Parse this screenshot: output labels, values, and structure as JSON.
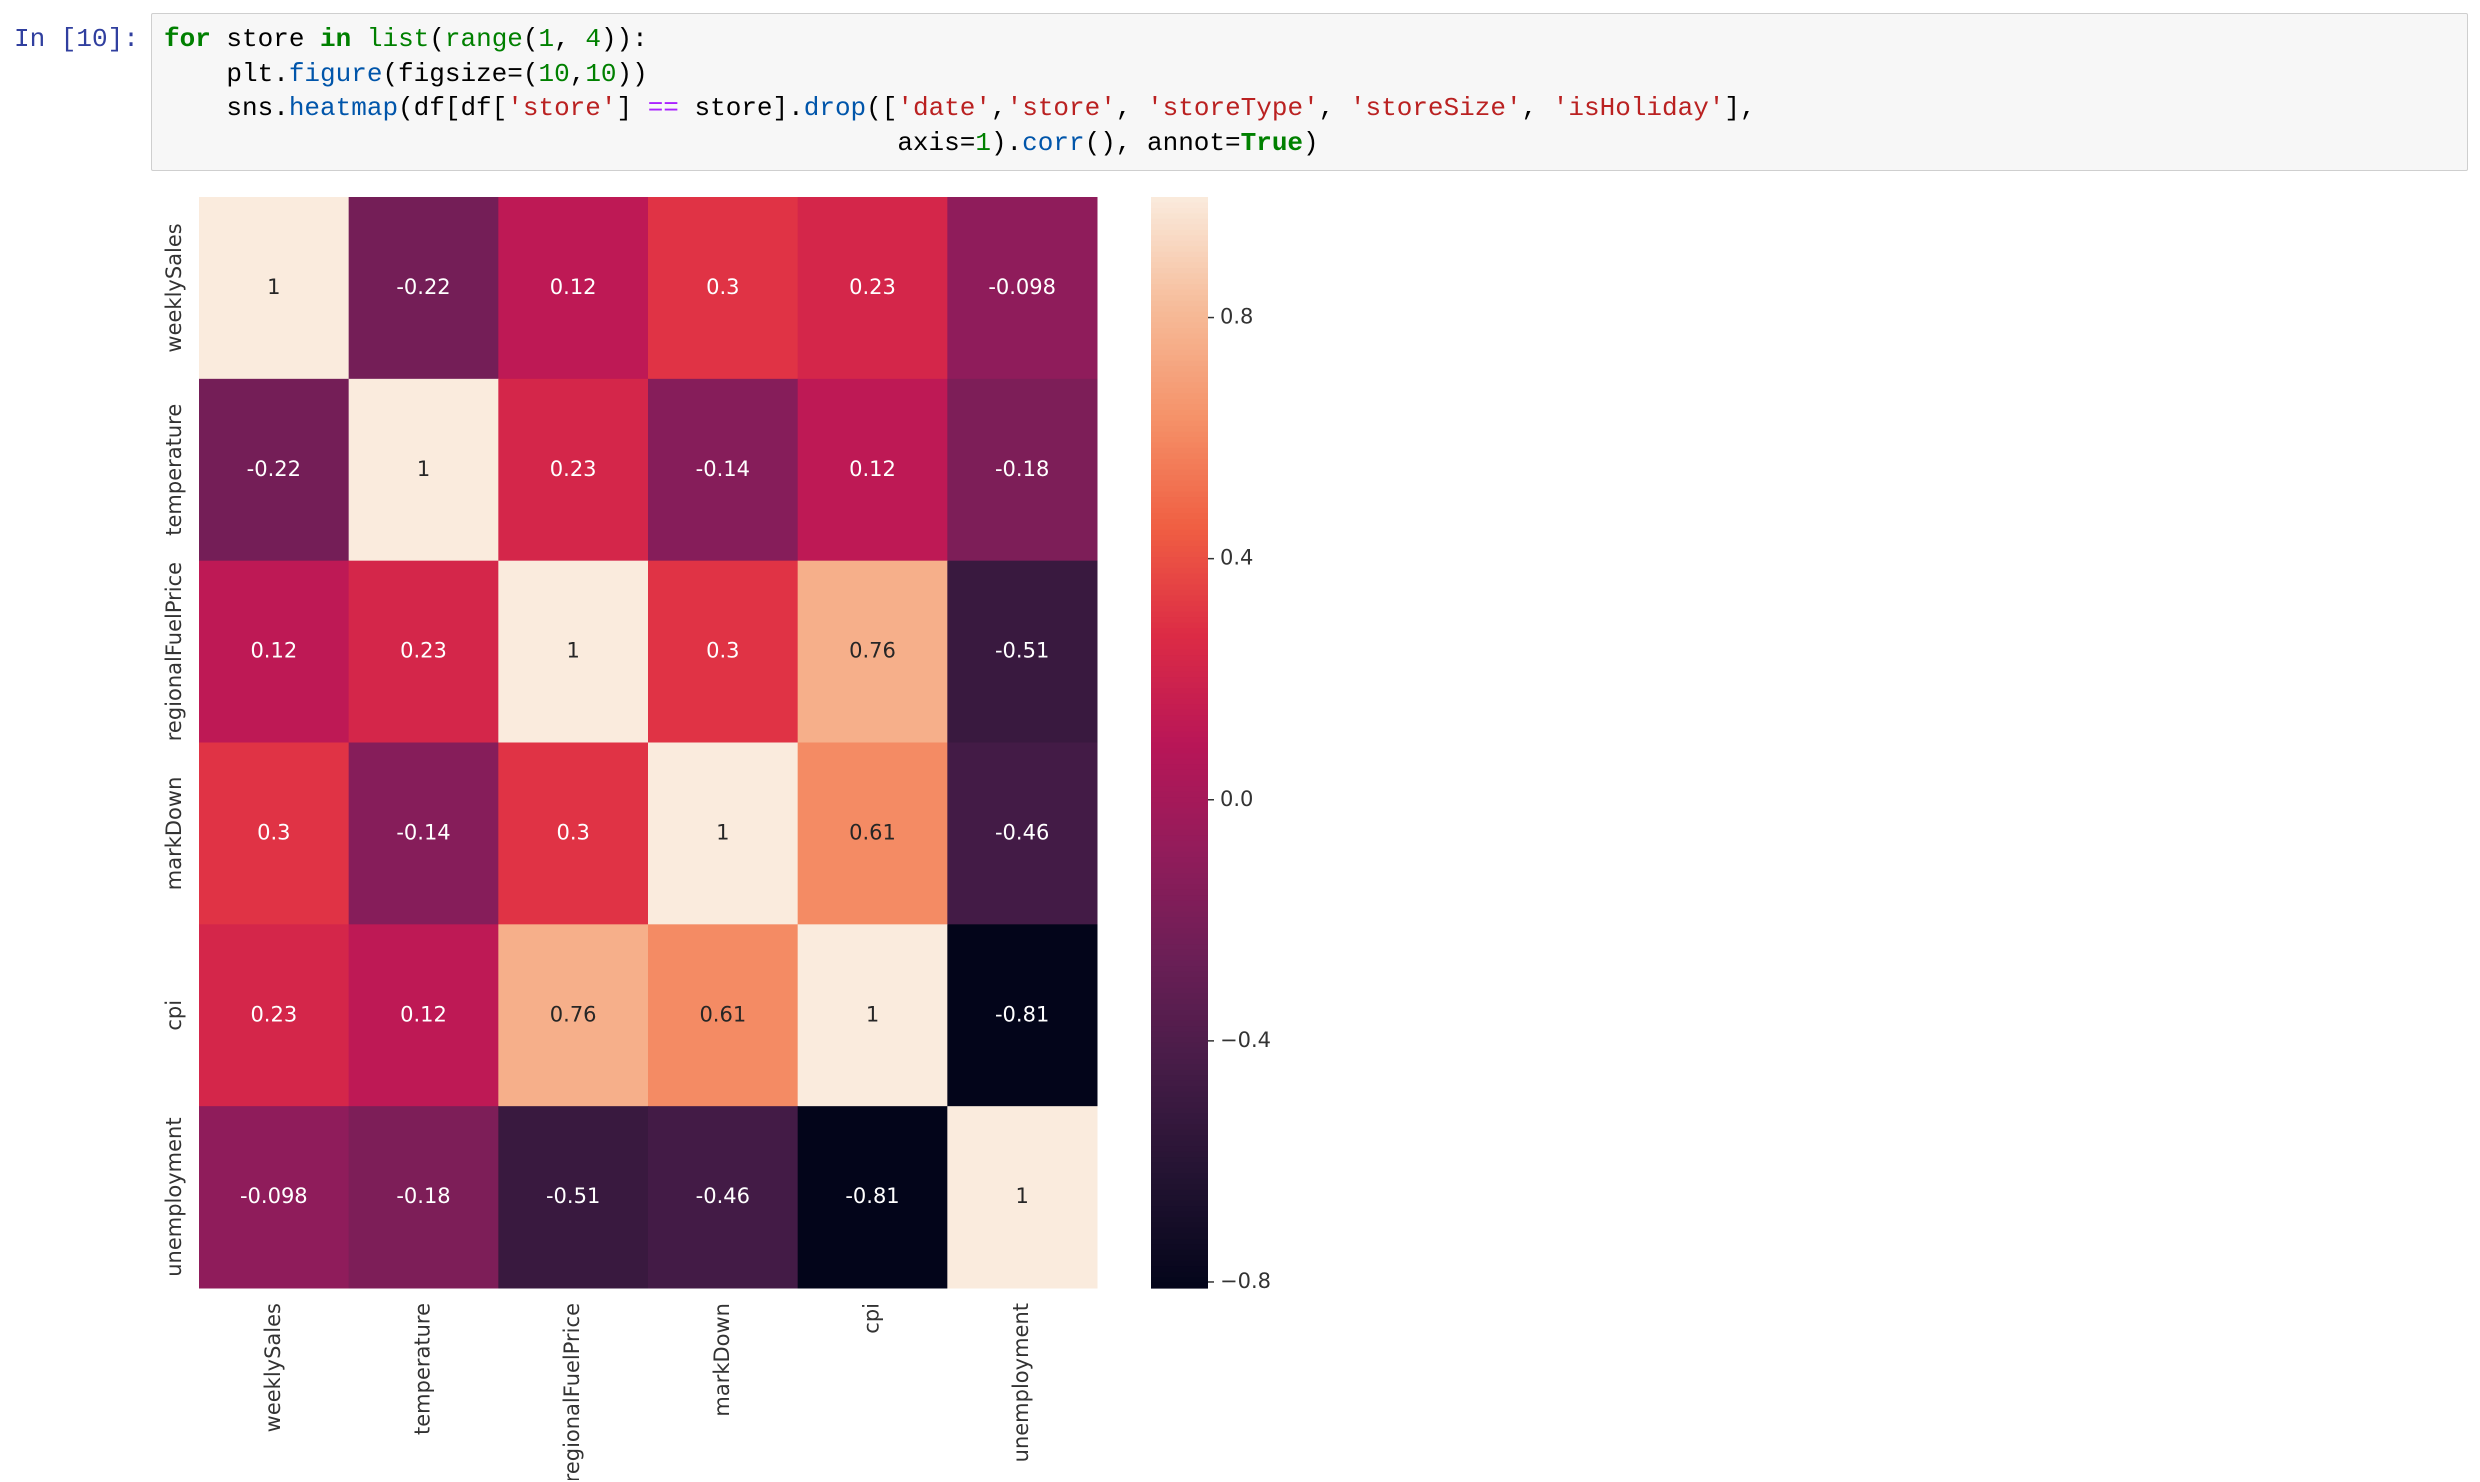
{
  "cell": {
    "prompt": "In [10]:",
    "code": [
      [
        {
          "t": "for",
          "c": "#008000",
          "b": true
        },
        {
          "t": " store ",
          "c": "#000000"
        },
        {
          "t": "in",
          "c": "#008000",
          "b": true
        },
        {
          "t": " ",
          "c": "#000000"
        },
        {
          "t": "list",
          "c": "#008000"
        },
        {
          "t": "(",
          "c": "#000000"
        },
        {
          "t": "range",
          "c": "#008000"
        },
        {
          "t": "(",
          "c": "#000000"
        },
        {
          "t": "1",
          "c": "#008000"
        },
        {
          "t": ", ",
          "c": "#000000"
        },
        {
          "t": "4",
          "c": "#008000"
        },
        {
          "t": ")):",
          "c": "#000000"
        }
      ],
      [
        {
          "t": "    plt.",
          "c": "#000000"
        },
        {
          "t": "figure",
          "c": "#0055aa"
        },
        {
          "t": "(figsize=(",
          "c": "#000000"
        },
        {
          "t": "10",
          "c": "#008000"
        },
        {
          "t": ",",
          "c": "#000000"
        },
        {
          "t": "10",
          "c": "#008000"
        },
        {
          "t": "))",
          "c": "#000000"
        }
      ],
      [
        {
          "t": "    sns.",
          "c": "#000000"
        },
        {
          "t": "heatmap",
          "c": "#0055aa"
        },
        {
          "t": "(df[df[",
          "c": "#000000"
        },
        {
          "t": "'store'",
          "c": "#ba2121"
        },
        {
          "t": "] ",
          "c": "#000000"
        },
        {
          "t": "==",
          "c": "#aa22ff"
        },
        {
          "t": " store].",
          "c": "#000000"
        },
        {
          "t": "drop",
          "c": "#0055aa"
        },
        {
          "t": "([",
          "c": "#000000"
        },
        {
          "t": "'date'",
          "c": "#ba2121"
        },
        {
          "t": ",",
          "c": "#000000"
        },
        {
          "t": "'store'",
          "c": "#ba2121"
        },
        {
          "t": ", ",
          "c": "#000000"
        },
        {
          "t": "'storeType'",
          "c": "#ba2121"
        },
        {
          "t": ", ",
          "c": "#000000"
        },
        {
          "t": "'storeSize'",
          "c": "#ba2121"
        },
        {
          "t": ", ",
          "c": "#000000"
        },
        {
          "t": "'isHoliday'",
          "c": "#ba2121"
        },
        {
          "t": "],",
          "c": "#000000"
        }
      ],
      [
        {
          "t": "                                               axis=",
          "c": "#000000"
        },
        {
          "t": "1",
          "c": "#008000"
        },
        {
          "t": ").",
          "c": "#000000"
        },
        {
          "t": "corr",
          "c": "#0055aa"
        },
        {
          "t": "(), annot=",
          "c": "#000000"
        },
        {
          "t": "True",
          "c": "#008000",
          "b": true
        },
        {
          "t": ")",
          "c": "#000000"
        }
      ]
    ]
  },
  "chart_data": {
    "type": "heatmap",
    "categories": [
      "weeklySales",
      "temperature",
      "regionalFuelPrice",
      "markDown",
      "cpi",
      "unemployment"
    ],
    "values": [
      [
        1,
        -0.22,
        0.12,
        0.3,
        0.23,
        -0.098
      ],
      [
        -0.22,
        1,
        0.23,
        -0.14,
        0.12,
        -0.18
      ],
      [
        0.12,
        0.23,
        1,
        0.3,
        0.76,
        -0.51
      ],
      [
        0.3,
        -0.14,
        0.3,
        1,
        0.61,
        -0.46
      ],
      [
        0.23,
        0.12,
        0.76,
        0.61,
        1,
        -0.81
      ],
      [
        -0.098,
        -0.18,
        -0.51,
        -0.46,
        -0.81,
        1
      ]
    ],
    "zlim": [
      -0.81,
      1
    ],
    "zticks": [
      {
        "value": -0.8,
        "label": "−0.8"
      },
      {
        "value": -0.4,
        "label": "−0.4"
      },
      {
        "value": 0,
        "label": "0.0"
      },
      0.4,
      0.8
    ],
    "colormap": [
      "#03051a",
      "#221331",
      "#451c47",
      "#6a1f56",
      "#921c5b",
      "#b91657",
      "#dd2c45",
      "#f06043",
      "#f5936a",
      "#f6bc9a",
      "#faebdd"
    ]
  }
}
